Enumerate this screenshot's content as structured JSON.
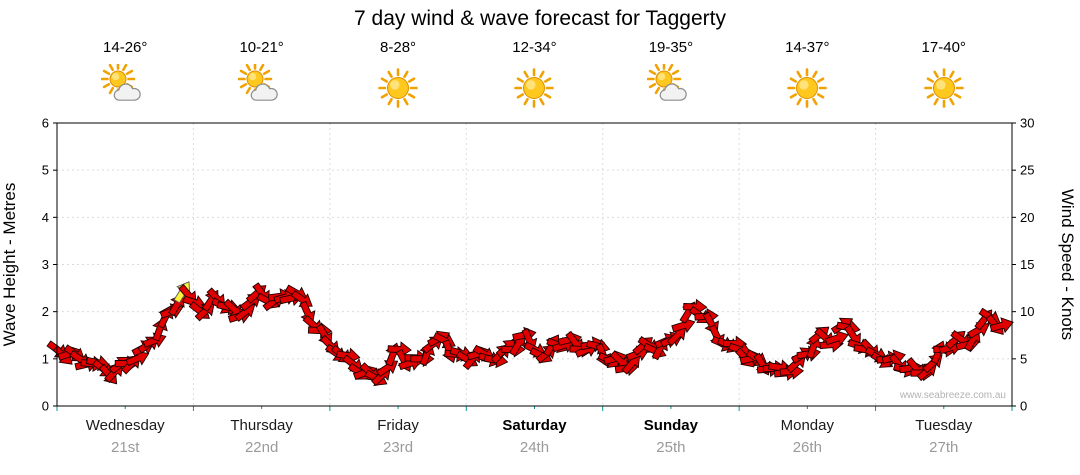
{
  "title": "7 day wind & wave forecast for Taggerty",
  "watermark": "www.seabreeze.com.au",
  "axes": {
    "left_title": "Wave Height - Metres",
    "right_title": "Wind Speed - Knots",
    "left_ticks": [
      0,
      1,
      2,
      3,
      4,
      5,
      6
    ],
    "right_ticks": [
      0,
      5,
      10,
      15,
      20,
      25,
      30
    ]
  },
  "days": [
    {
      "name": "Wednesday",
      "date": "21st",
      "temp": "14-26°",
      "icon": "sun-cloud",
      "bold": false
    },
    {
      "name": "Thursday",
      "date": "22nd",
      "temp": "10-21°",
      "icon": "sun-cloud",
      "bold": false
    },
    {
      "name": "Friday",
      "date": "23rd",
      "temp": "8-28°",
      "icon": "sun",
      "bold": false
    },
    {
      "name": "Saturday",
      "date": "24th",
      "temp": "12-34°",
      "icon": "sun",
      "bold": true
    },
    {
      "name": "Sunday",
      "date": "25th",
      "temp": "19-35°",
      "icon": "sun-cloud",
      "bold": true
    },
    {
      "name": "Monday",
      "date": "26th",
      "temp": "14-37°",
      "icon": "sun",
      "bold": false
    },
    {
      "name": "Tuesday",
      "date": "27th",
      "temp": "17-40°",
      "icon": "sun",
      "bold": false
    }
  ],
  "chart_data": {
    "type": "wind-arrow-timeseries",
    "title": "7 day wind & wave forecast for Taggerty",
    "x_unit": "hours",
    "x_range": [
      0,
      168
    ],
    "hours_per_day": 24,
    "x_start": 0,
    "x_step": 2,
    "left_axis": {
      "label": "Wave Height - Metres",
      "range": [
        0,
        6
      ]
    },
    "right_axis": {
      "label": "Wind Speed - Knots",
      "range": [
        0,
        30
      ]
    },
    "grid": true,
    "arrow_color": "#E00000",
    "highlight_color": "#FFF23C",
    "highlight_index": 11,
    "points_knots": [
      6,
      5.5,
      5,
      4.5,
      4,
      3.5,
      4.5,
      5,
      6.5,
      8,
      10,
      12,
      11,
      10,
      11.5,
      10.5,
      9.5,
      11,
      12,
      11,
      11.5,
      12,
      10,
      8,
      6.5,
      5.5,
      4.5,
      3.5,
      3,
      4,
      6,
      4.5,
      5,
      6.5,
      7,
      5.5,
      5,
      5.5,
      5,
      5.5,
      6,
      7.5,
      6,
      5.5,
      6.5,
      7,
      6,
      6.5,
      5.5,
      5,
      4,
      5.5,
      6.5,
      6,
      7,
      8.5,
      10.5,
      9.5,
      7.5,
      6.5,
      6,
      5,
      4.5,
      4,
      3.5,
      4.5,
      5.5,
      7.5,
      6.5,
      8.5,
      7.5,
      6,
      5.5,
      5,
      4.5,
      4,
      3.5,
      4.5,
      6,
      7,
      6.5,
      8,
      9.5,
      8.5
    ]
  }
}
